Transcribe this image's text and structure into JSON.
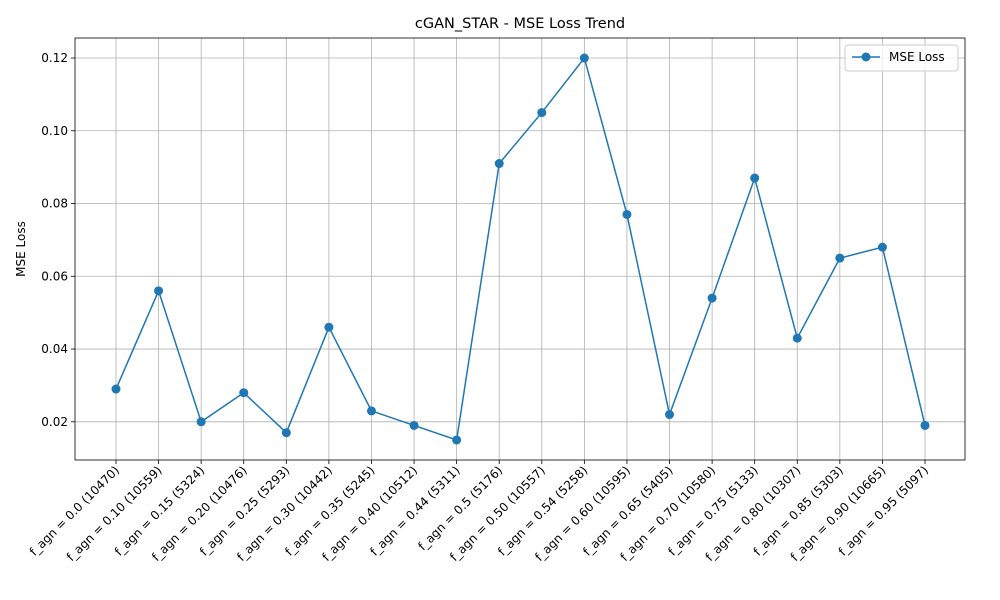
{
  "chart_data": {
    "type": "line",
    "title": "cGAN_STAR - MSE Loss Trend",
    "xlabel": "",
    "ylabel": "MSE Loss",
    "ylim": [
      0.0095,
      0.1255
    ],
    "yticks": [
      0.02,
      0.04,
      0.06,
      0.08,
      0.1,
      0.12
    ],
    "ytick_labels": [
      "0.02",
      "0.04",
      "0.06",
      "0.08",
      "0.10",
      "0.12"
    ],
    "grid": true,
    "legend_position": "top-right",
    "line_color": "#1f77b4",
    "categories": [
      "f_agn = 0.0 (10470)",
      "f_agn = 0.10 (10559)",
      "f_agn = 0.15 (5324)",
      "f_agn = 0.20 (10476)",
      "f_agn = 0.25 (5293)",
      "f_agn = 0.30 (10442)",
      "f_agn = 0.35 (5245)",
      "f_agn = 0.40 (10512)",
      "f_agn = 0.44 (5311)",
      "f_agn = 0.5 (5176)",
      "f_agn = 0.50 (10557)",
      "f_agn = 0.54 (5258)",
      "f_agn = 0.60 (10595)",
      "f_agn = 0.65 (5405)",
      "f_agn = 0.70 (10580)",
      "f_agn = 0.75 (5133)",
      "f_agn = 0.80 (10307)",
      "f_agn = 0.85 (5303)",
      "f_agn = 0.90 (10665)",
      "f_agn = 0.95 (5097)"
    ],
    "series": [
      {
        "name": "MSE Loss",
        "values": [
          0.029,
          0.056,
          0.02,
          0.028,
          0.017,
          0.046,
          0.023,
          0.019,
          0.015,
          0.091,
          0.105,
          0.12,
          0.077,
          0.022,
          0.054,
          0.087,
          0.043,
          0.065,
          0.068,
          0.019
        ]
      }
    ]
  }
}
